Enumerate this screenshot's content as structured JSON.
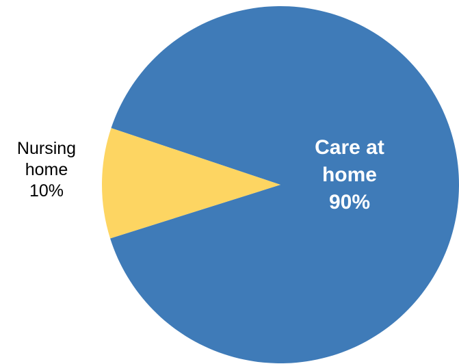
{
  "chart_data": {
    "type": "pie",
    "title": "",
    "slices": [
      {
        "name": "Care at home",
        "value": 90,
        "color": "#3F7BB8",
        "label_lines": [
          "Care at",
          "home",
          "90%"
        ],
        "label_position": "inside"
      },
      {
        "name": "Nursing home",
        "value": 10,
        "color": "#FDD562",
        "label_lines": [
          "Nursing",
          "home",
          "10%"
        ],
        "label_position": "outside-left"
      }
    ],
    "legend": "none"
  }
}
